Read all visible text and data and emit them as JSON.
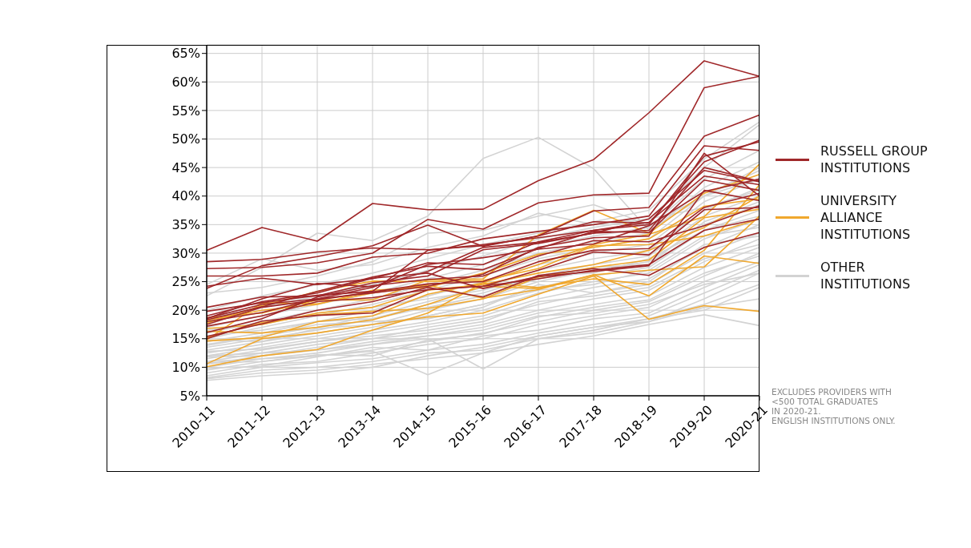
{
  "chart_data": {
    "type": "line",
    "categories": [
      "2010-11",
      "2011-12",
      "2012-13",
      "2013-14",
      "2014-15",
      "2015-16",
      "2016-17",
      "2017-18",
      "2018-19",
      "2019-20",
      "2020-21"
    ],
    "ylim": [
      5,
      66.5
    ],
    "yticks": [
      {
        "value": 5,
        "label": "5%"
      },
      {
        "value": 10,
        "label": "10%"
      },
      {
        "value": 15,
        "label": "15%"
      },
      {
        "value": 20,
        "label": "20%"
      },
      {
        "value": 25,
        "label": "25%"
      },
      {
        "value": 30,
        "label": "30%"
      },
      {
        "value": 35,
        "label": "35%"
      },
      {
        "value": 40,
        "label": "40%"
      },
      {
        "value": 45,
        "label": "45%"
      },
      {
        "value": 50,
        "label": "50%"
      },
      {
        "value": 55,
        "label": "55%"
      },
      {
        "value": 60,
        "label": "60%"
      },
      {
        "value": 65,
        "label": "65%"
      }
    ],
    "grid": true,
    "legend": "right",
    "marker": "none",
    "line_style": "solid",
    "annotations": [
      "EXCLUDES PROVIDERS WITH\n<500 TOTAL GRADUATES\nIN 2020-21.\nENGLISH INSTITUTIONS ONLY."
    ],
    "series": [
      {
        "name": "OTHER INSTITUTIONS",
        "color": "#d3d3d3",
        "values": [
          22.5,
          27.5,
          33.5,
          32.2,
          36.5,
          46.6,
          50.3,
          44.8,
          34.0,
          40.0,
          43.0
        ]
      },
      {
        "color": "#d3d3d3",
        "values": [
          11.0,
          11.5,
          12.0,
          12.8,
          8.7,
          12.5,
          15.5,
          17.0,
          18.0,
          22.0,
          26.5
        ]
      },
      {
        "color": "#d3d3d3",
        "values": [
          12.0,
          12.5,
          13.0,
          14.0,
          15.0,
          9.7,
          15.0,
          16.5,
          18.5,
          20.0,
          24.0
        ]
      },
      {
        "color": "#d3d3d3",
        "values": [
          8.0,
          9.0,
          9.5,
          10.5,
          11.5,
          12.5,
          14.0,
          15.5,
          17.5,
          19.2,
          17.3
        ]
      },
      {
        "color": "#d3d3d3",
        "values": [
          7.7,
          8.5,
          9.0,
          10.0,
          12.0,
          13.5,
          15.5,
          17.0,
          18.5,
          21.0,
          24.5
        ]
      },
      {
        "color": "#d3d3d3",
        "values": [
          8.5,
          10.0,
          10.8,
          11.5,
          13.0,
          14.0,
          16.0,
          17.5,
          19.0,
          23.0,
          27.0
        ]
      },
      {
        "color": "#d3d3d3",
        "values": [
          9.0,
          10.5,
          11.0,
          12.5,
          14.0,
          15.0,
          17.5,
          19.0,
          20.5,
          25.0,
          28.5
        ]
      },
      {
        "color": "#d3d3d3",
        "values": [
          9.5,
          11.0,
          12.0,
          13.0,
          14.5,
          16.0,
          18.0,
          20.0,
          21.5,
          26.0,
          30.0
        ]
      },
      {
        "color": "#d3d3d3",
        "values": [
          10.0,
          11.5,
          12.5,
          14.0,
          15.5,
          17.0,
          19.5,
          21.0,
          22.5,
          27.5,
          31.0
        ]
      },
      {
        "color": "#d3d3d3",
        "values": [
          10.5,
          12.0,
          13.5,
          15.0,
          16.0,
          17.5,
          20.0,
          22.0,
          23.5,
          28.5,
          32.5
        ]
      },
      {
        "color": "#d3d3d3",
        "values": [
          11.0,
          12.5,
          14.0,
          15.0,
          17.0,
          18.5,
          21.0,
          23.0,
          24.5,
          30.0,
          33.5
        ]
      },
      {
        "color": "#d3d3d3",
        "values": [
          11.5,
          13.0,
          14.5,
          16.0,
          17.5,
          19.0,
          22.0,
          24.0,
          25.5,
          31.0,
          35.0
        ]
      },
      {
        "color": "#d3d3d3",
        "values": [
          12.0,
          13.5,
          15.0,
          16.5,
          18.0,
          20.0,
          23.0,
          25.0,
          26.5,
          32.5,
          36.0
        ]
      },
      {
        "color": "#d3d3d3",
        "values": [
          12.5,
          14.0,
          15.5,
          17.0,
          19.0,
          21.0,
          24.0,
          26.0,
          27.5,
          34.0,
          37.5
        ]
      },
      {
        "color": "#d3d3d3",
        "values": [
          13.0,
          14.5,
          16.0,
          17.5,
          20.0,
          22.0,
          25.0,
          27.0,
          28.5,
          35.0,
          38.5
        ]
      },
      {
        "color": "#d3d3d3",
        "values": [
          13.5,
          15.0,
          16.5,
          18.5,
          21.0,
          23.0,
          26.0,
          28.0,
          29.5,
          36.5,
          40.0
        ]
      },
      {
        "color": "#d3d3d3",
        "values": [
          14.0,
          15.5,
          17.0,
          19.0,
          21.5,
          24.0,
          27.0,
          29.0,
          30.5,
          37.5,
          41.5
        ]
      },
      {
        "color": "#d3d3d3",
        "values": [
          14.5,
          16.0,
          18.0,
          20.0,
          22.5,
          25.0,
          28.0,
          30.0,
          31.5,
          39.0,
          43.0
        ]
      },
      {
        "color": "#d3d3d3",
        "values": [
          15.0,
          17.0,
          19.0,
          21.0,
          23.5,
          26.0,
          29.0,
          31.0,
          32.5,
          40.0,
          44.5
        ]
      },
      {
        "color": "#d3d3d3",
        "values": [
          16.0,
          18.0,
          20.0,
          22.0,
          24.5,
          27.0,
          30.0,
          32.0,
          33.5,
          41.5,
          46.0
        ]
      },
      {
        "color": "#d3d3d3",
        "values": [
          17.0,
          19.0,
          21.0,
          23.0,
          25.5,
          28.0,
          31.0,
          33.0,
          34.5,
          43.0,
          48.0
        ]
      },
      {
        "color": "#d3d3d3",
        "values": [
          18.5,
          20.5,
          22.5,
          24.5,
          27.0,
          29.5,
          32.5,
          34.5,
          36.0,
          45.0,
          52.5
        ]
      },
      {
        "color": "#d3d3d3",
        "values": [
          20.0,
          22.5,
          24.5,
          26.5,
          29.0,
          31.5,
          33.5,
          35.5,
          37.5,
          46.5,
          53.0
        ]
      },
      {
        "color": "#d3d3d3",
        "values": [
          24.5,
          29.0,
          27.0,
          28.0,
          31.0,
          33.0,
          37.0,
          35.0,
          36.0,
          38.0,
          41.0
        ]
      },
      {
        "color": "#d3d3d3",
        "values": [
          9.8,
          10.2,
          11.8,
          13.5,
          13.0,
          15.5,
          16.5,
          18.5,
          19.5,
          24.0,
          28.0
        ]
      },
      {
        "color": "#d3d3d3",
        "values": [
          10.8,
          11.0,
          12.2,
          12.0,
          14.8,
          15.8,
          18.8,
          20.5,
          21.8,
          26.5,
          29.5
        ]
      },
      {
        "color": "#d3d3d3",
        "values": [
          12.8,
          13.2,
          14.5,
          15.5,
          16.5,
          18.0,
          21.5,
          22.5,
          24.0,
          29.0,
          31.5
        ]
      },
      {
        "color": "#d3d3d3",
        "values": [
          14.8,
          14.5,
          16.8,
          17.5,
          19.0,
          21.0,
          23.5,
          24.5,
          27.0,
          33.0,
          34.5
        ]
      },
      {
        "color": "#d3d3d3",
        "values": [
          15.5,
          16.5,
          18.0,
          18.5,
          20.5,
          22.5,
          25.5,
          27.5,
          28.0,
          35.5,
          39.0
        ]
      },
      {
        "color": "#d3d3d3",
        "values": [
          8.2,
          9.5,
          10.0,
          11.0,
          12.5,
          13.0,
          15.0,
          16.0,
          18.0,
          20.5,
          22.0
        ]
      },
      {
        "color": "#d3d3d3",
        "values": [
          11.8,
          12.0,
          13.0,
          14.5,
          15.5,
          16.5,
          19.0,
          19.5,
          21.0,
          24.5,
          26.5
        ]
      },
      {
        "color": "#d3d3d3",
        "values": [
          13.8,
          15.5,
          17.5,
          18.0,
          18.5,
          20.5,
          24.5,
          23.0,
          25.0,
          31.5,
          33.0
        ]
      },
      {
        "color": "#d3d3d3",
        "values": [
          16.5,
          17.5,
          19.5,
          20.5,
          22.0,
          23.5,
          26.0,
          26.5,
          29.0,
          34.0,
          36.5
        ]
      },
      {
        "color": "#d3d3d3",
        "values": [
          23.0,
          24.0,
          26.0,
          28.5,
          33.5,
          34.0,
          36.5,
          38.5,
          35.0,
          40.0,
          45.0
        ]
      },
      {
        "name": "UNIVERSITY ALLIANCE INSTITUTIONS",
        "color": "#f0a82e",
        "values": [
          10.1,
          12.0,
          13.1,
          16.5,
          19.5,
          24.8,
          28.0,
          31.5,
          33.3,
          36.4,
          45.6
        ]
      },
      {
        "color": "#f0a82e",
        "values": [
          10.6,
          15.0,
          16.0,
          17.5,
          18.8,
          19.5,
          22.8,
          26.0,
          18.4,
          20.8,
          19.8
        ]
      },
      {
        "color": "#f0a82e",
        "values": [
          14.8,
          21.3,
          21.1,
          23.0,
          24.4,
          22.1,
          23.6,
          26.2,
          22.5,
          29.5,
          28.2
        ]
      },
      {
        "color": "#f0a82e",
        "values": [
          18.7,
          19.5,
          21.8,
          21.8,
          25.3,
          25.5,
          33.2,
          37.5,
          33.5,
          40.5,
          43.8
        ]
      },
      {
        "color": "#f0a82e",
        "values": [
          16.3,
          16.0,
          17.0,
          18.3,
          21.0,
          24.2,
          23.8,
          26.2,
          27.0,
          27.6,
          36.5
        ]
      },
      {
        "color": "#f0a82e",
        "values": [
          15.2,
          17.8,
          19.2,
          19.8,
          20.3,
          22.0,
          25.8,
          27.5,
          28.8,
          36.2,
          37.7
        ]
      },
      {
        "color": "#f0a82e",
        "values": [
          17.7,
          20.8,
          23.3,
          25.1,
          25.0,
          25.2,
          27.3,
          31.3,
          31.5,
          33.0,
          36.0
        ]
      },
      {
        "color": "#f0a82e",
        "values": [
          16.8,
          17.5,
          19.5,
          20.5,
          23.5,
          24.5,
          26.5,
          28.0,
          30.5,
          34.5,
          40.0
        ]
      },
      {
        "color": "#f0a82e",
        "values": [
          14.6,
          15.2,
          18.0,
          19.0,
          22.8,
          24.8,
          24.0,
          25.5,
          24.5,
          30.5,
          42.0
        ]
      },
      {
        "color": "#f0a82e",
        "values": [
          18.2,
          20.0,
          21.0,
          23.5,
          24.0,
          26.5,
          29.8,
          31.0,
          32.5,
          38.2,
          39.5
        ]
      },
      {
        "name": "RUSSELL GROUP INSTITUTIONS",
        "color": "#a0282a",
        "values": [
          30.5,
          34.5,
          32.1,
          38.7,
          37.6,
          37.7,
          42.7,
          46.4,
          54.6,
          63.7,
          61.0
        ]
      },
      {
        "color": "#a0282a",
        "values": [
          27.3,
          27.5,
          28.3,
          30.0,
          35.9,
          34.2,
          38.8,
          40.2,
          40.5,
          59.0,
          61.0
        ]
      },
      {
        "color": "#a0282a",
        "values": [
          28.5,
          28.9,
          30.2,
          30.9,
          30.6,
          31.3,
          33.0,
          37.4,
          38.0,
          50.5,
          54.2
        ]
      },
      {
        "color": "#a0282a",
        "values": [
          26.0,
          26.0,
          26.5,
          29.3,
          30.0,
          32.5,
          33.8,
          35.0,
          36.5,
          48.8,
          48.0
        ]
      },
      {
        "color": "#a0282a",
        "values": [
          24.2,
          25.6,
          24.5,
          25.5,
          28.3,
          28.0,
          32.0,
          34.0,
          35.0,
          47.0,
          49.5
        ]
      },
      {
        "color": "#a0282a",
        "values": [
          23.8,
          27.8,
          29.4,
          31.3,
          34.9,
          31.2,
          33.0,
          35.5,
          35.3,
          46.0,
          49.8
        ]
      },
      {
        "color": "#a0282a",
        "values": [
          20.5,
          22.3,
          22.5,
          24.8,
          26.0,
          30.6,
          31.7,
          33.5,
          34.0,
          45.0,
          42.6
        ]
      },
      {
        "color": "#a0282a",
        "values": [
          19.8,
          21.3,
          22.6,
          23.3,
          30.5,
          31.5,
          32.7,
          34.0,
          35.4,
          43.5,
          42.0
        ]
      },
      {
        "color": "#a0282a",
        "values": [
          18.3,
          20.6,
          23.3,
          25.8,
          27.7,
          27.1,
          30.8,
          33.8,
          33.6,
          42.8,
          41.0
        ]
      },
      {
        "color": "#a0282a",
        "values": [
          18.0,
          19.6,
          22.0,
          24.0,
          28.0,
          29.2,
          30.7,
          31.6,
          34.8,
          40.8,
          43.0
        ]
      },
      {
        "color": "#a0282a",
        "values": [
          17.5,
          20.5,
          21.8,
          23.2,
          24.6,
          25.0,
          28.5,
          30.5,
          30.8,
          38.0,
          40.5
        ]
      },
      {
        "color": "#a0282a",
        "values": [
          17.2,
          19.0,
          21.5,
          22.2,
          23.6,
          24.2,
          27.0,
          30.2,
          29.7,
          37.6,
          38.0
        ]
      },
      {
        "color": "#a0282a",
        "values": [
          16.1,
          18.5,
          22.3,
          24.3,
          25.4,
          26.0,
          29.5,
          32.2,
          32.0,
          34.8,
          38.3
        ]
      },
      {
        "color": "#a0282a",
        "values": [
          15.4,
          17.6,
          20.0,
          21.5,
          24.0,
          22.3,
          26.1,
          27.3,
          26.1,
          31.0,
          33.6
        ]
      },
      {
        "color": "#a0282a",
        "values": [
          15.0,
          18.1,
          19.1,
          19.5,
          23.6,
          24.2,
          25.5,
          27.0,
          28.0,
          34.0,
          36.0
        ]
      },
      {
        "color": "#a0282a",
        "values": [
          18.6,
          21.0,
          22.0,
          23.0,
          24.2,
          26.3,
          31.0,
          32.7,
          33.0,
          47.5,
          40.0
        ]
      },
      {
        "color": "#a0282a",
        "values": [
          18.5,
          22.0,
          24.7,
          24.1,
          26.8,
          31.0,
          31.9,
          33.5,
          36.0,
          44.5,
          42.5
        ]
      },
      {
        "color": "#a0282a",
        "values": [
          19.0,
          21.5,
          23.0,
          25.6,
          26.5,
          23.8,
          25.9,
          26.8,
          27.8,
          41.0,
          39.2
        ]
      }
    ]
  }
}
